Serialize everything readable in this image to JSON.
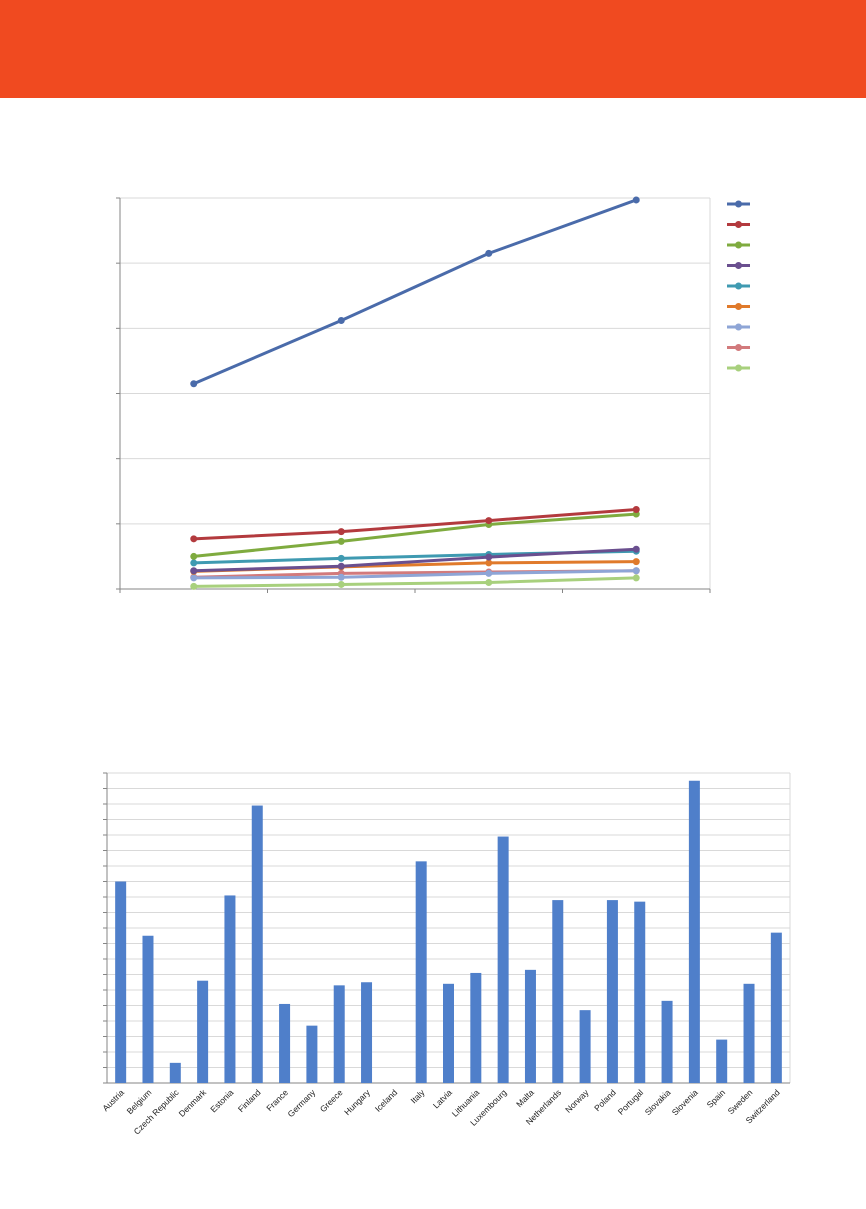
{
  "colors": {
    "banner": "#f04a20",
    "axis": "#868686",
    "grid": "#d9d9d9",
    "bar": "#4f7fca"
  },
  "chart_data": [
    {
      "type": "line",
      "title": "",
      "xlabel": "",
      "ylabel": "",
      "x_points": 4,
      "ylim": [
        0,
        6
      ],
      "y_gridlines": [
        1,
        2,
        3,
        4,
        5,
        6
      ],
      "x_ticks": 4,
      "legend": "right",
      "grid": true,
      "series": [
        {
          "color": "#4a6baa",
          "values": [
            3.15,
            4.12,
            5.15,
            5.97
          ]
        },
        {
          "color": "#b33a3e",
          "values": [
            0.77,
            0.88,
            1.05,
            1.22
          ]
        },
        {
          "color": "#7fab3f",
          "values": [
            0.5,
            0.73,
            0.99,
            1.15
          ]
        },
        {
          "color": "#6a4f8f",
          "values": [
            0.28,
            0.35,
            0.49,
            0.61
          ]
        },
        {
          "color": "#3f9ab1",
          "values": [
            0.4,
            0.47,
            0.53,
            0.58
          ]
        },
        {
          "color": "#e07a2b",
          "values": [
            0.27,
            0.34,
            0.4,
            0.42
          ]
        },
        {
          "color": "#8ea5d6",
          "values": [
            0.17,
            0.18,
            0.24,
            0.28
          ]
        },
        {
          "color": "#d27a7c",
          "values": [
            0.18,
            0.24,
            0.26,
            0.28
          ]
        },
        {
          "color": "#a8d07d",
          "values": [
            0.04,
            0.07,
            0.1,
            0.17
          ]
        }
      ]
    },
    {
      "type": "bar",
      "title": "",
      "xlabel": "",
      "ylabel": "",
      "ylim": [
        0,
        20
      ],
      "y_gridlines": [
        1,
        2,
        3,
        4,
        5,
        6,
        7,
        8,
        9,
        10,
        11,
        12,
        13,
        14,
        15,
        16,
        17,
        18,
        19,
        20
      ],
      "grid": true,
      "categories": [
        "Austria",
        "Belgium",
        "Czech Republic",
        "Denmark",
        "Estonia",
        "Finland",
        "France",
        "Germany",
        "Greece",
        "Hungary",
        "Iceland",
        "Italy",
        "Latvia",
        "Lithuania",
        "Luxembourg",
        "Malta",
        "Netherlands",
        "Norway",
        "Poland",
        "Portugal",
        "Slovakia",
        "Slovenia",
        "Spain",
        "Sweden",
        "Switzerland"
      ],
      "values": [
        13,
        9.5,
        1.3,
        6.6,
        12.1,
        17.9,
        5.1,
        3.7,
        6.3,
        6.5,
        0,
        14.3,
        6.4,
        7.1,
        15.9,
        7.3,
        11.8,
        4.7,
        11.8,
        11.7,
        5.3,
        19.5,
        2.8,
        6.4,
        9.7
      ]
    }
  ]
}
